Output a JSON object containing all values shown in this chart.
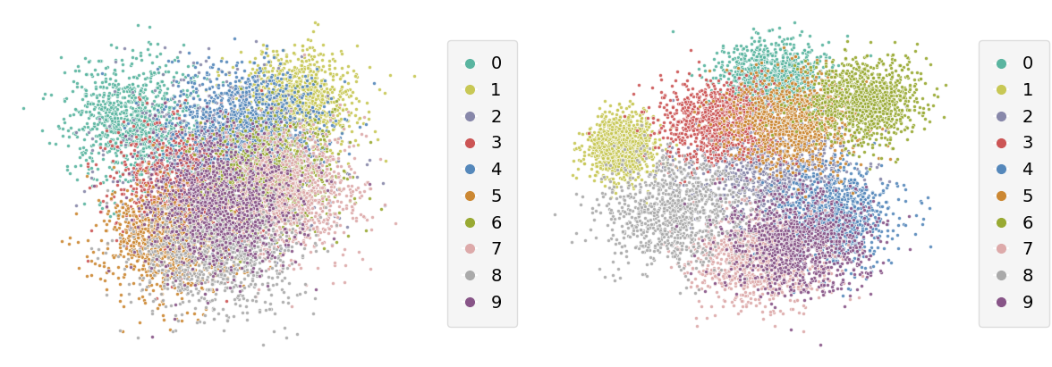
{
  "class_colors": [
    "#5ab5a0",
    "#c8c855",
    "#8888aa",
    "#cc5555",
    "#5588bb",
    "#cc8833",
    "#99aa33",
    "#ddaaaa",
    "#aaaaaa",
    "#885588"
  ],
  "class_labels": [
    "0",
    "1",
    "2",
    "3",
    "4",
    "5",
    "6",
    "7",
    "8",
    "9"
  ],
  "n_per_class": 1000,
  "marker_size": 8,
  "edgecolor": "white",
  "edgewidth": 0.4,
  "alpha": 0.9,
  "bg_color": "#ffffff",
  "legend_facecolor": "#f5f5f5",
  "legend_edgecolor": "#dddddd",
  "legend_fontsize": 14,
  "legend_markersize": 7
}
